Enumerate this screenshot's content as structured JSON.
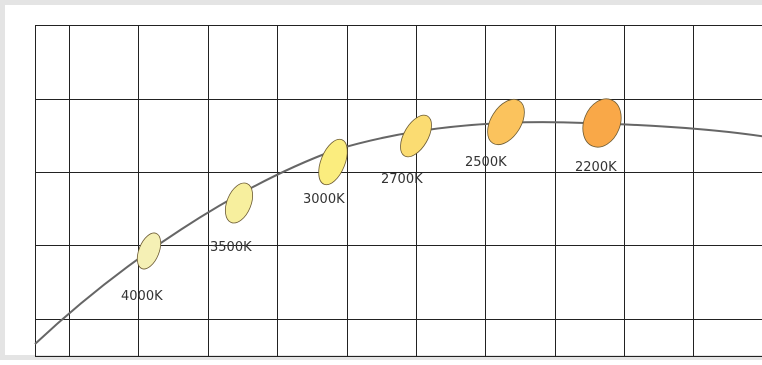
{
  "diagram": {
    "points": [
      {
        "label": "4000K",
        "color": "#f5f0b5"
      },
      {
        "label": "3500K",
        "color": "#f7ef9e"
      },
      {
        "label": "3000K",
        "color": "#fbed7e"
      },
      {
        "label": "2700K",
        "color": "#fbdc72"
      },
      {
        "label": "2500K",
        "color": "#fbc35d"
      },
      {
        "label": "2200K",
        "color": "#f9a848"
      }
    ]
  }
}
